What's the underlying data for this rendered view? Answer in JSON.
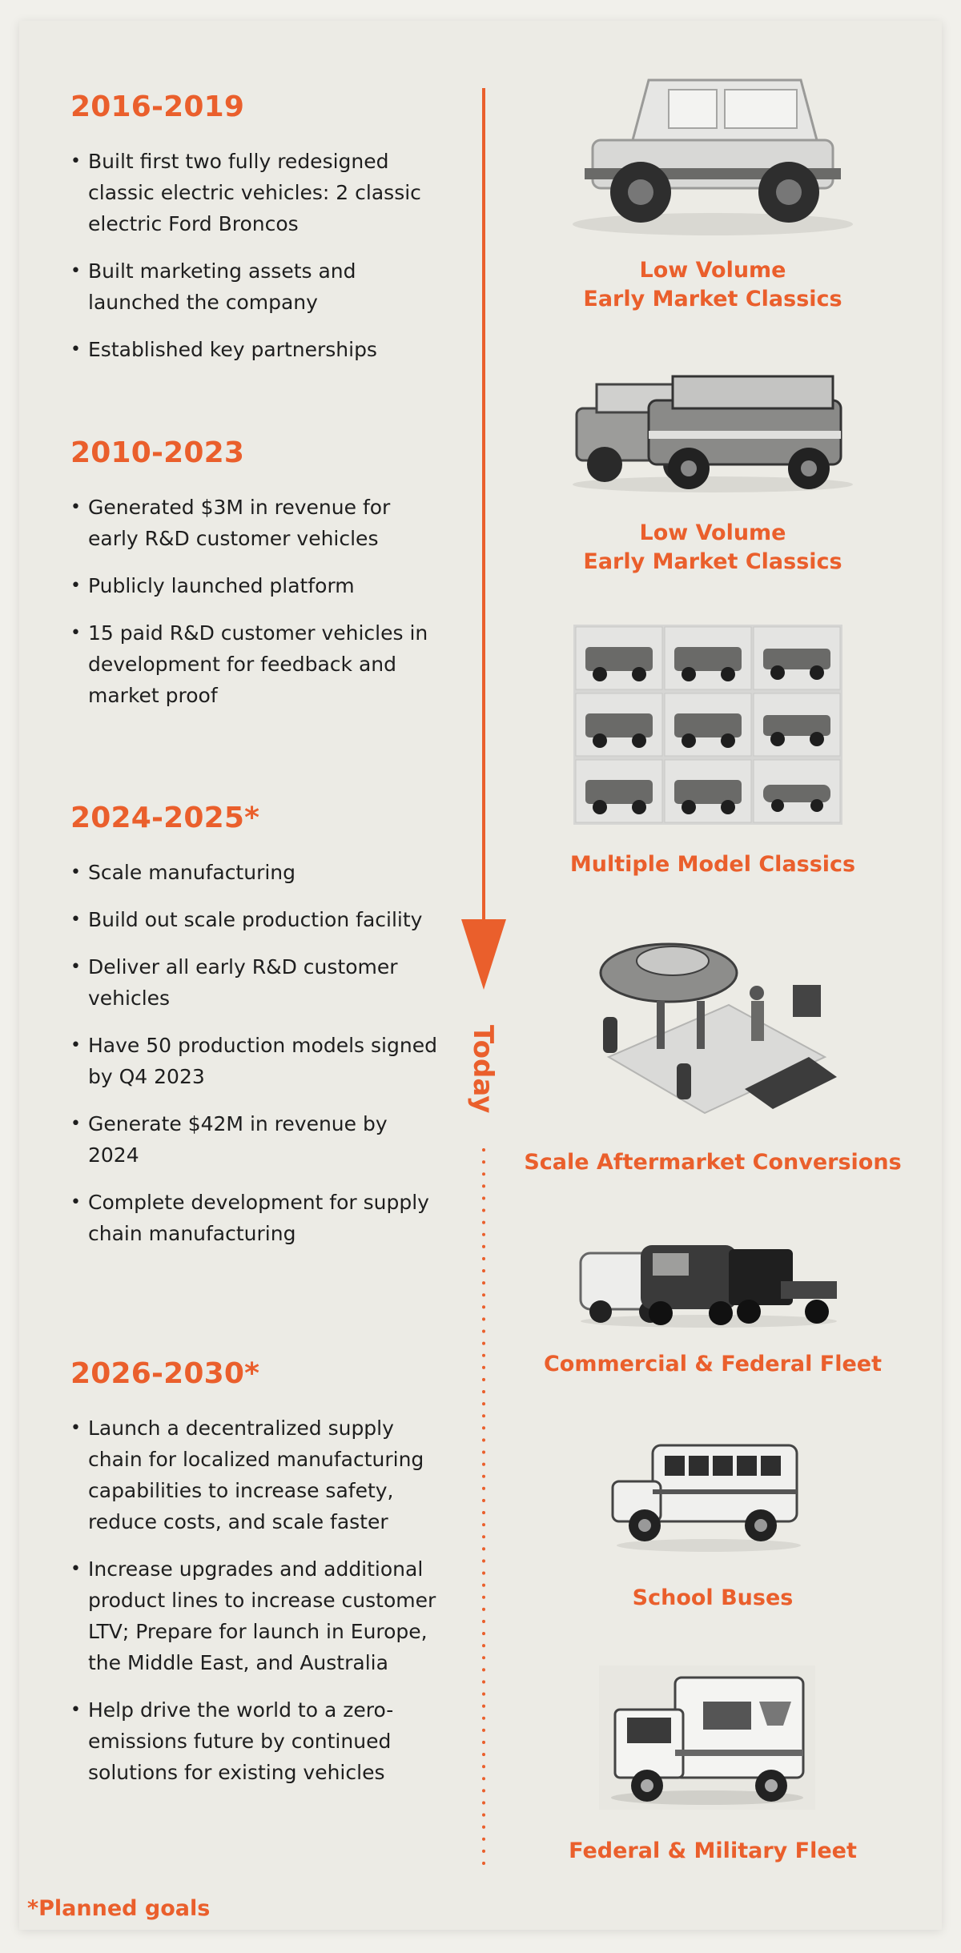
{
  "accent_color": "#ea5f2c",
  "periods": [
    {
      "title": "2016-2019",
      "items": [
        "Built first two fully redesigned classic electric vehicles: 2 classic electric Ford Broncos",
        "Built marketing assets and launched the company",
        "Established key partnerships"
      ]
    },
    {
      "title": "2010-2023",
      "items": [
        "Generated $3M in revenue for early R&D customer vehicles",
        "Publicly launched platform",
        "15 paid R&D customer vehicles in development for feedback and market proof"
      ]
    },
    {
      "title": "2024-2025*",
      "items": [
        "Scale manufacturing",
        "Build out scale production facility",
        "Deliver all early R&D customer vehicles",
        "Have 50 production models signed by Q4 2023",
        "Generate $42M in revenue by 2024",
        "Complete development for supply chain manufacturing"
      ]
    },
    {
      "title": "2026-2030*",
      "items": [
        "Launch a decentralized supply chain for localized manufacturing capabilities to increase safety, reduce costs, and scale faster",
        "Increase upgrades and additional product lines to increase customer LTV; Prepare for launch in Europe, the Middle East, and Australia",
        "Help drive the world to a zero-emissions future by continued solutions for existing vehicles"
      ]
    }
  ],
  "timeline": {
    "today_label": "Today"
  },
  "segments": [
    {
      "caption_line1": "Low Volume",
      "caption_line2": "Early Market Classics",
      "icon": "classic-bronco-chassis"
    },
    {
      "caption_line1": "Low Volume",
      "caption_line2": "Early Market Classics",
      "icon": "two-classic-broncos"
    },
    {
      "caption_line1": "Multiple Model Classics",
      "caption_line2": "",
      "icon": "classic-models-grid"
    },
    {
      "caption_line1": "Scale Aftermarket Conversions",
      "caption_line2": "",
      "icon": "car-on-lift-workshop"
    },
    {
      "caption_line1": "Commercial & Federal Fleet",
      "caption_line2": "",
      "icon": "fleet-vans-trucks"
    },
    {
      "caption_line1": "School Buses",
      "caption_line2": "",
      "icon": "school-bus"
    },
    {
      "caption_line1": "Federal & Military Fleet",
      "caption_line2": "",
      "icon": "postal-truck"
    }
  ],
  "footnote": "*Planned goals"
}
